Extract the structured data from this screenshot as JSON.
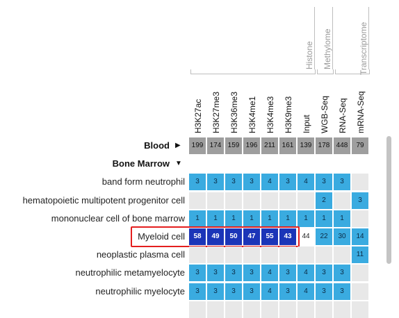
{
  "groups": [
    {
      "label": "Histone"
    },
    {
      "label": "Methylome"
    },
    {
      "label": "Transcriptome"
    }
  ],
  "columns": [
    "H3K27ac",
    "H3K27me3",
    "H3K36me3",
    "H3K4me1",
    "H3K4me3",
    "H3K9me3",
    "Input",
    "WGB-Seq",
    "RNA-Seq",
    "mRNA-Seq"
  ],
  "rows": [
    {
      "label": "Blood",
      "bold": true,
      "arrow": "▶",
      "style": "gray",
      "cells": [
        "199",
        "174",
        "159",
        "196",
        "211",
        "161",
        "139",
        "178",
        "448",
        "79"
      ]
    },
    {
      "label": "Bone Marrow",
      "bold": true,
      "arrow": "▼",
      "style": "header",
      "cells": [
        "",
        "",
        "",
        "",
        "",
        "",
        "",
        "",
        "",
        ""
      ]
    },
    {
      "label": "band form neutrophil",
      "cells": [
        "3",
        "3",
        "3",
        "3",
        "4",
        "3",
        "4",
        "3",
        "3",
        ""
      ]
    },
    {
      "label": "hematopoietic multipotent progenitor cell",
      "cells": [
        "",
        "",
        "",
        "",
        "",
        "",
        "",
        "2",
        "",
        "3"
      ]
    },
    {
      "label": "mononuclear cell of bone marrow",
      "cells": [
        "1",
        "1",
        "1",
        "1",
        "1",
        "1",
        "1",
        "1",
        "1",
        ""
      ]
    },
    {
      "label": "Myeloid cell",
      "highlight": true,
      "cells": [
        "58",
        "49",
        "50",
        "47",
        "55",
        "43",
        "44",
        "22",
        "30",
        "14"
      ]
    },
    {
      "label": "neoplastic plasma cell",
      "cells": [
        "",
        "",
        "",
        "",
        "",
        "",
        "",
        "",
        "",
        "11"
      ]
    },
    {
      "label": "neutrophilic metamyelocyte",
      "cells": [
        "3",
        "3",
        "3",
        "3",
        "4",
        "3",
        "4",
        "3",
        "3",
        ""
      ]
    },
    {
      "label": "neutrophilic myelocyte",
      "cells": [
        "3",
        "3",
        "3",
        "3",
        "4",
        "3",
        "4",
        "3",
        "3",
        ""
      ]
    },
    {
      "label": "",
      "cells": [
        "",
        "",
        "",
        "",
        "",
        "",
        "",
        "",
        "",
        ""
      ]
    }
  ],
  "colors": {
    "gray": "#9e9e9e",
    "blue": "#3aabe0",
    "dark": "#1b35b8",
    "empty": "#e8e8e8",
    "highlight": "#e41e1e"
  }
}
